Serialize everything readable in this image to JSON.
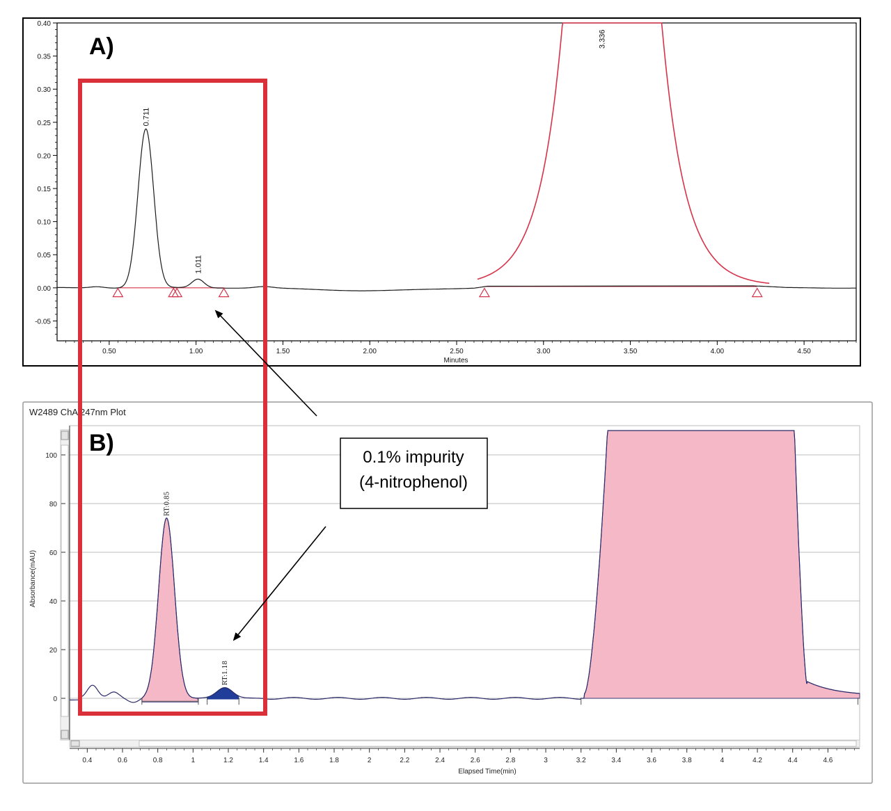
{
  "chart_data": [
    {
      "type": "line",
      "panel_label": "A)",
      "xlabel": "Minutes",
      "xlim": [
        0.2,
        4.8
      ],
      "ylim": [
        -0.08,
        0.4
      ],
      "x_ticks": [
        "0.50",
        "1.00",
        "1.50",
        "2.00",
        "2.50",
        "3.00",
        "3.50",
        "4.00",
        "4.50"
      ],
      "y_ticks": [
        "0.40",
        "0.35",
        "0.30",
        "0.25",
        "0.20",
        "0.15",
        "0.10",
        "0.05",
        "0.00",
        "-0.05"
      ],
      "peaks": [
        {
          "label": "0.711",
          "rt": 0.711,
          "height": 0.24
        },
        {
          "label": "1.011",
          "rt": 1.011,
          "height": 0.013
        },
        {
          "label": "3.336",
          "rt": 3.336,
          "height": 0.4
        }
      ],
      "baseline_markers_x": [
        0.55,
        0.87,
        0.89,
        1.16,
        2.66,
        4.23
      ],
      "colors": {
        "trace": "#1a1a1a",
        "integration": "#d6334a"
      }
    },
    {
      "type": "area",
      "panel_label": "B)",
      "title": "W2489 ChA 247nm Plot",
      "xlabel": "Elapsed Time(min)",
      "ylabel": "Absorbance(mAU)",
      "xlim": [
        0.3,
        4.78
      ],
      "ylim": [
        -20,
        112
      ],
      "x_ticks": [
        "0.4",
        "0.6",
        "0.8",
        "1",
        "1.2",
        "1.4",
        "1.6",
        "1.8",
        "2",
        "2.2",
        "2.4",
        "2.6",
        "2.8",
        "3",
        "3.2",
        "3.4",
        "3.6",
        "3.8",
        "4",
        "4.2",
        "4.4",
        "4.6"
      ],
      "y_ticks": [
        "100",
        "80",
        "60",
        "40",
        "20",
        "0"
      ],
      "peaks": [
        {
          "label": "RT:0.85",
          "rt": 0.85,
          "height": 74
        },
        {
          "label": "RT:1.18",
          "rt": 1.18,
          "height": 4.5
        },
        {
          "label": "",
          "rt": 3.85,
          "height": 110
        }
      ],
      "colors": {
        "trace": "#2a2a6a",
        "main_fill": "#f4b8c6",
        "impurity_fill": "#1f3d99",
        "title": "#1a7a1a"
      }
    }
  ],
  "annotation": {
    "line1": "0.1% impurity",
    "line2": "(4-nitrophenol)"
  }
}
